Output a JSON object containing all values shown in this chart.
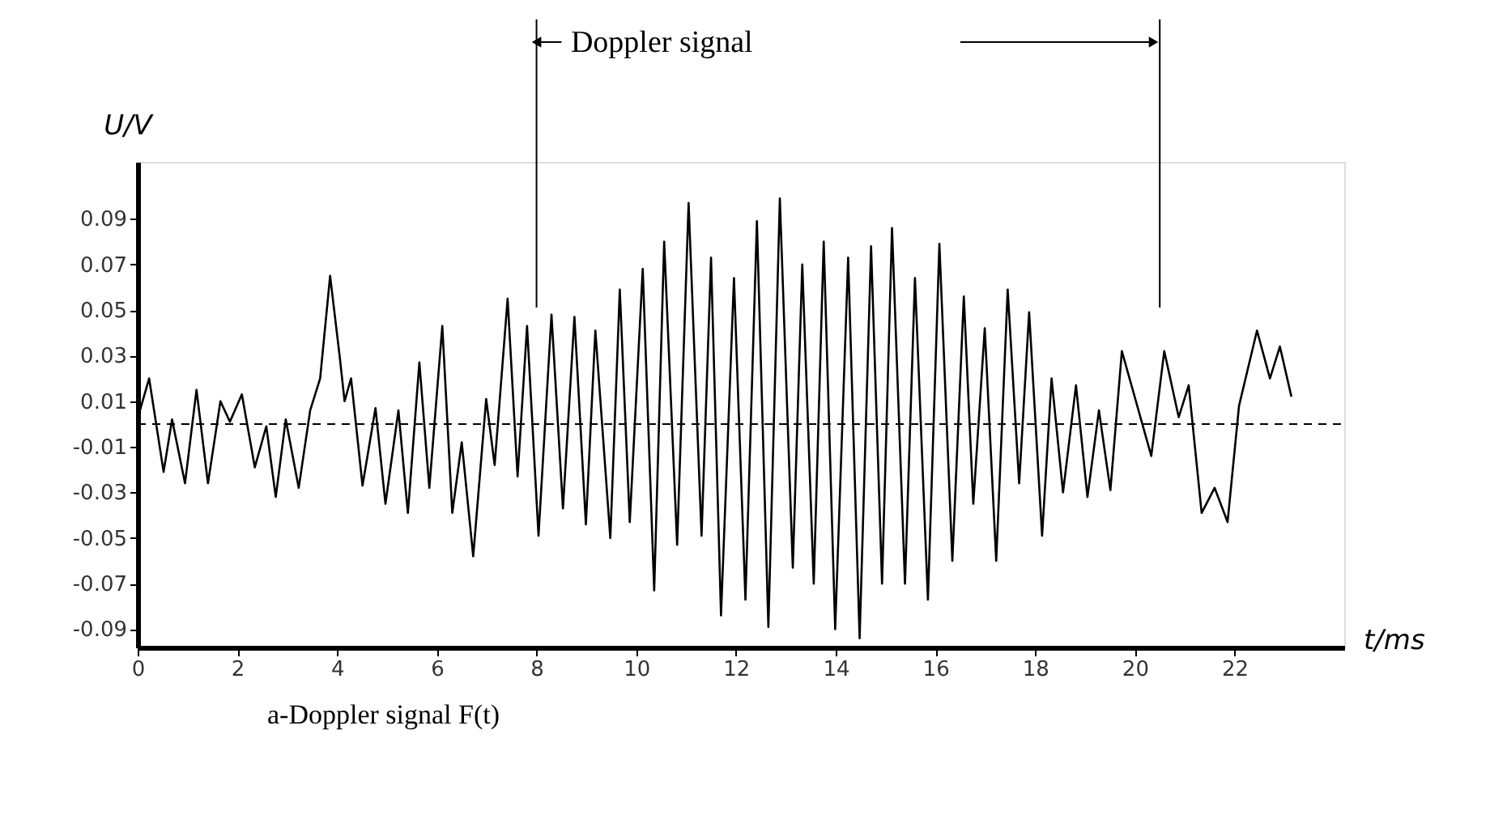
{
  "chart_data": {
    "type": "line",
    "xlabel": "t/ms",
    "ylabel": "U/V",
    "annotations": [
      "Doppler signal",
      "a-Doppler signal F(t)"
    ],
    "x": [
      0.02,
      0.23,
      0.52,
      0.69,
      0.95,
      1.18,
      1.41,
      1.66,
      1.85,
      2.09,
      2.35,
      2.58,
      2.77,
      2.97,
      3.23,
      3.46,
      3.66,
      3.86,
      4.05,
      4.15,
      4.28,
      4.51,
      4.77,
      4.97,
      5.23,
      5.42,
      5.65,
      5.85,
      6.11,
      6.31,
      6.5,
      6.73,
      6.99,
      7.16,
      7.42,
      7.62,
      7.81,
      8.04,
      8.3,
      8.53,
      8.76,
      8.99,
      9.18,
      9.48,
      9.67,
      9.87,
      10.13,
      10.36,
      10.56,
      10.82,
      11.05,
      11.31,
      11.5,
      11.7,
      11.96,
      12.19,
      12.42,
      12.65,
      12.88,
      13.14,
      13.33,
      13.56,
      13.76,
      13.99,
      14.25,
      14.48,
      14.71,
      14.93,
      15.13,
      15.39,
      15.59,
      15.85,
      16.08,
      16.34,
      16.57,
      16.76,
      16.99,
      17.22,
      17.45,
      17.68,
      17.88,
      18.14,
      18.33,
      18.56,
      18.82,
      19.05,
      19.28,
      19.51,
      19.74,
      20.33,
      20.59,
      20.88,
      21.08,
      21.34,
      21.6,
      21.86,
      22.09,
      22.45,
      22.71,
      22.91,
      23.14
    ],
    "series": [
      {
        "color": "#000000",
        "values": [
          0.004,
          0.02,
          -0.021,
          0.002,
          -0.026,
          0.015,
          -0.026,
          0.01,
          0.001,
          0.013,
          -0.019,
          -0.001,
          -0.032,
          0.002,
          -0.028,
          0.006,
          0.02,
          0.065,
          0.03,
          0.01,
          0.02,
          -0.027,
          0.007,
          -0.035,
          0.006,
          -0.039,
          0.027,
          -0.028,
          0.043,
          -0.039,
          -0.008,
          -0.058,
          0.011,
          -0.018,
          0.055,
          -0.023,
          0.043,
          -0.049,
          0.048,
          -0.037,
          0.047,
          -0.044,
          0.041,
          -0.05,
          0.059,
          -0.043,
          0.068,
          -0.073,
          0.08,
          -0.053,
          0.097,
          -0.049,
          0.073,
          -0.084,
          0.064,
          -0.077,
          0.089,
          -0.089,
          0.099,
          -0.063,
          0.07,
          -0.07,
          0.08,
          -0.09,
          0.073,
          -0.094,
          0.078,
          -0.07,
          0.086,
          -0.07,
          0.064,
          -0.077,
          0.079,
          -0.06,
          0.056,
          -0.035,
          0.042,
          -0.06,
          0.059,
          -0.026,
          0.049,
          -0.049,
          0.02,
          -0.03,
          0.017,
          -0.032,
          0.006,
          -0.029,
          0.032,
          -0.014,
          0.032,
          0.003,
          0.017,
          -0.039,
          -0.028,
          -0.043,
          0.008,
          0.041,
          0.02,
          0.034,
          0.012
        ]
      }
    ],
    "xlim": [
      0,
      24.2
    ],
    "ylim": [
      -0.098,
      0.115
    ],
    "xticks": [
      0,
      2,
      4,
      6,
      8,
      10,
      12,
      14,
      16,
      18,
      20,
      22
    ],
    "yticks": [
      -0.09,
      -0.07,
      -0.05,
      -0.03,
      -0.01,
      0.01,
      0.03,
      0.05,
      0.07,
      0.09
    ],
    "ref_lines": [
      {
        "axis": "y",
        "value": 0,
        "line_style": "dashed",
        "color": "#000000"
      },
      {
        "axis": "x",
        "value": 8,
        "color": "#000000"
      },
      {
        "axis": "x",
        "value": 20.5,
        "color": "#000000"
      }
    ],
    "grid": false,
    "marker": "none",
    "line_style": "solid"
  }
}
